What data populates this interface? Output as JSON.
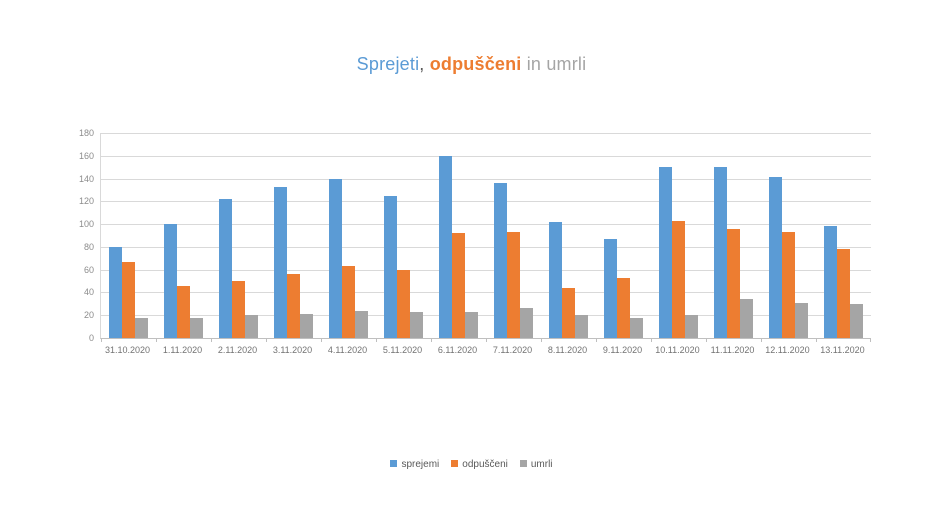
{
  "page": {
    "background": "#FFFFFF"
  },
  "title": {
    "full_text": "Sprejeti, odpuščeni in umrli",
    "parts": [
      {
        "text": "Sprejeti",
        "color": "#5B9BD5",
        "bold": false
      },
      {
        "text": ", ",
        "color": "#595959",
        "bold": false
      },
      {
        "text": "odpuščeni",
        "color": "#ED7D31",
        "bold": true
      },
      {
        "text": " in umrli",
        "color": "#A5A5A5",
        "bold": false
      }
    ]
  },
  "chart_data": {
    "type": "bar",
    "title": "Sprejeti, odpuščeni in umrli",
    "xlabel": "",
    "ylabel": "",
    "ylim": [
      0,
      180
    ],
    "ytick_step": 20,
    "yticks": [
      0,
      20,
      40,
      60,
      80,
      100,
      120,
      140,
      160,
      180
    ],
    "grid": true,
    "legend_position": "bottom",
    "categories": [
      "31.10.2020",
      "1.11.2020",
      "2.11.2020",
      "3.11.2020",
      "4.11.2020",
      "5.11.2020",
      "6.11.2020",
      "7.11.2020",
      "8.11.2020",
      "9.11.2020",
      "10.11.2020",
      "11.11.2020",
      "12.11.2020",
      "13.11.2020"
    ],
    "series": [
      {
        "name": "sprejemi",
        "key": "sprejemi",
        "color": "#5B9BD5",
        "values": [
          80,
          100,
          122,
          133,
          140,
          125,
          160,
          136,
          102,
          87,
          150,
          150,
          141,
          98
        ]
      },
      {
        "name": "odpuščeni",
        "key": "odpusceni",
        "color": "#ED7D31",
        "values": [
          67,
          46,
          50,
          56,
          63,
          60,
          92,
          93,
          44,
          53,
          103,
          96,
          93,
          78
        ]
      },
      {
        "name": "umrli",
        "key": "umrli",
        "color": "#A5A5A5",
        "values": [
          18,
          18,
          20,
          21,
          24,
          23,
          23,
          26,
          20,
          18,
          20,
          34,
          31,
          30
        ]
      }
    ],
    "colors": {
      "gridline": "#D9D9D9",
      "axis_line": "#BFBFBF",
      "axis_text": "#737373",
      "legend_text": "#595959"
    }
  }
}
